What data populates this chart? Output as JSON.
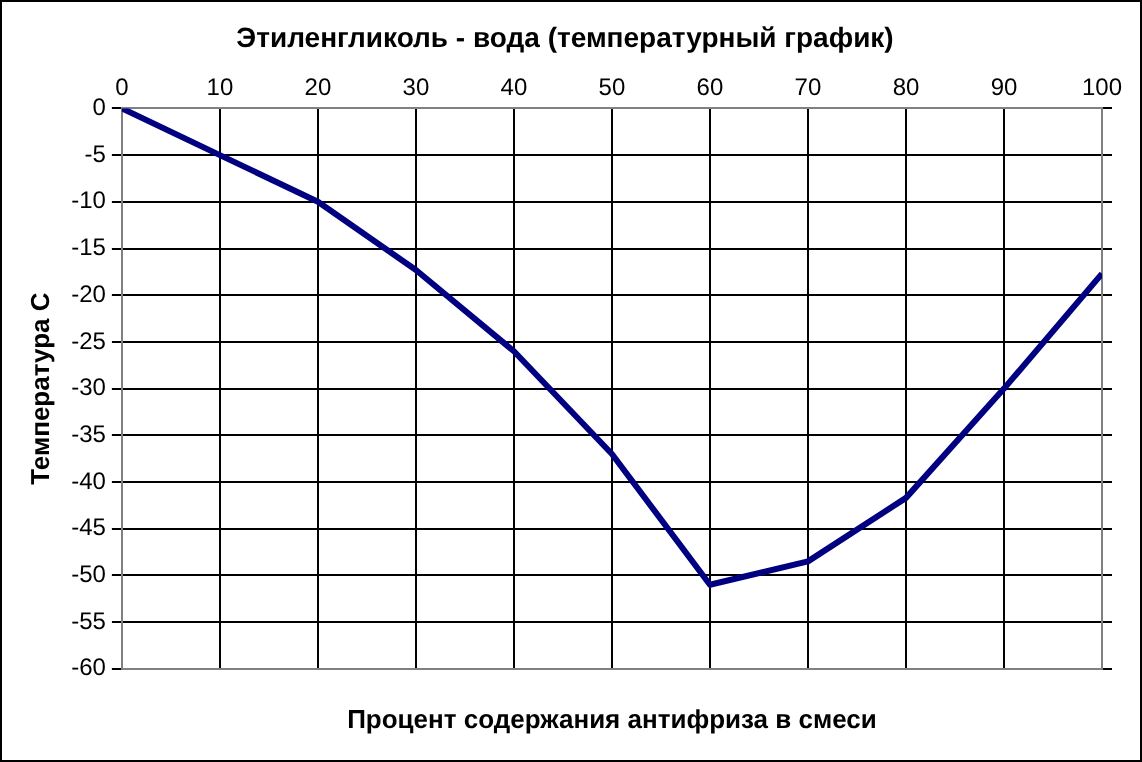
{
  "chart_data": {
    "type": "line",
    "title": "Этиленгликоль - вода (температурный график)",
    "xlabel": "Процент содержания антифриза в смеси",
    "ylabel": "Температура С",
    "x": [
      0,
      10,
      20,
      30,
      40,
      50,
      60,
      70,
      80,
      90,
      100
    ],
    "series": [
      {
        "color": "#000080",
        "values": [
          0,
          -5,
          -10,
          -17.3,
          -26,
          -37,
          -51,
          -48.5,
          -41.7,
          -30,
          -17.7
        ]
      }
    ],
    "xlim": [
      0,
      100
    ],
    "xticks": [
      0,
      10,
      20,
      30,
      40,
      50,
      60,
      70,
      80,
      90,
      100
    ],
    "ylim": [
      -60,
      0
    ],
    "yticks": [
      0,
      -5,
      -10,
      -15,
      -20,
      -25,
      -30,
      -35,
      -40,
      -45,
      -50,
      -55,
      -60
    ],
    "grid": true,
    "legend": false,
    "marker": "none",
    "line_style": "solid"
  }
}
